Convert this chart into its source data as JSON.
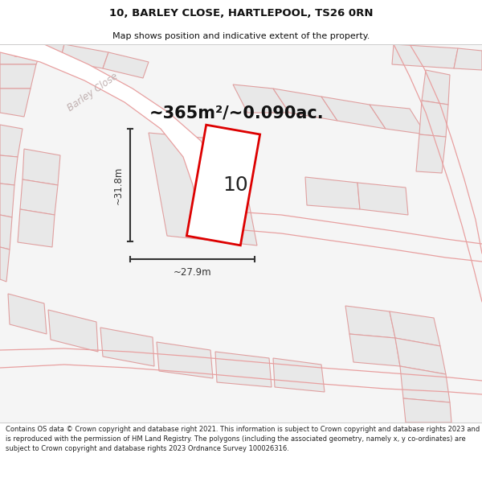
{
  "title": "10, BARLEY CLOSE, HARTLEPOOL, TS26 0RN",
  "subtitle": "Map shows position and indicative extent of the property.",
  "area_text": "~365m²/~0.090ac.",
  "label_number": "10",
  "dim_width": "~27.9m",
  "dim_height": "~31.8m",
  "street_label": "Barley Close",
  "footer": "Contains OS data © Crown copyright and database right 2021. This information is subject to Crown copyright and database rights 2023 and is reproduced with the permission of HM Land Registry. The polygons (including the associated geometry, namely x, y co-ordinates) are subject to Crown copyright and database rights 2023 Ordnance Survey 100026316.",
  "bg_color": "#ffffff",
  "map_bg": "#f2f2f2",
  "plot_fill": "#e8e8e8",
  "plot_outline": "#e0a0a0",
  "road_line_color": "#e8a0a0",
  "highlight_outline": "#dd0000",
  "highlight_fill": "#ffffff",
  "dim_color": "#333333",
  "title_color": "#111111",
  "street_label_color": "#c0b0b0",
  "title_fontsize": 9.5,
  "subtitle_fontsize": 8.0,
  "area_fontsize": 15,
  "label_fontsize": 18,
  "dim_fontsize": 8.5,
  "street_fontsize": 8.5,
  "footer_fontsize": 6.0
}
